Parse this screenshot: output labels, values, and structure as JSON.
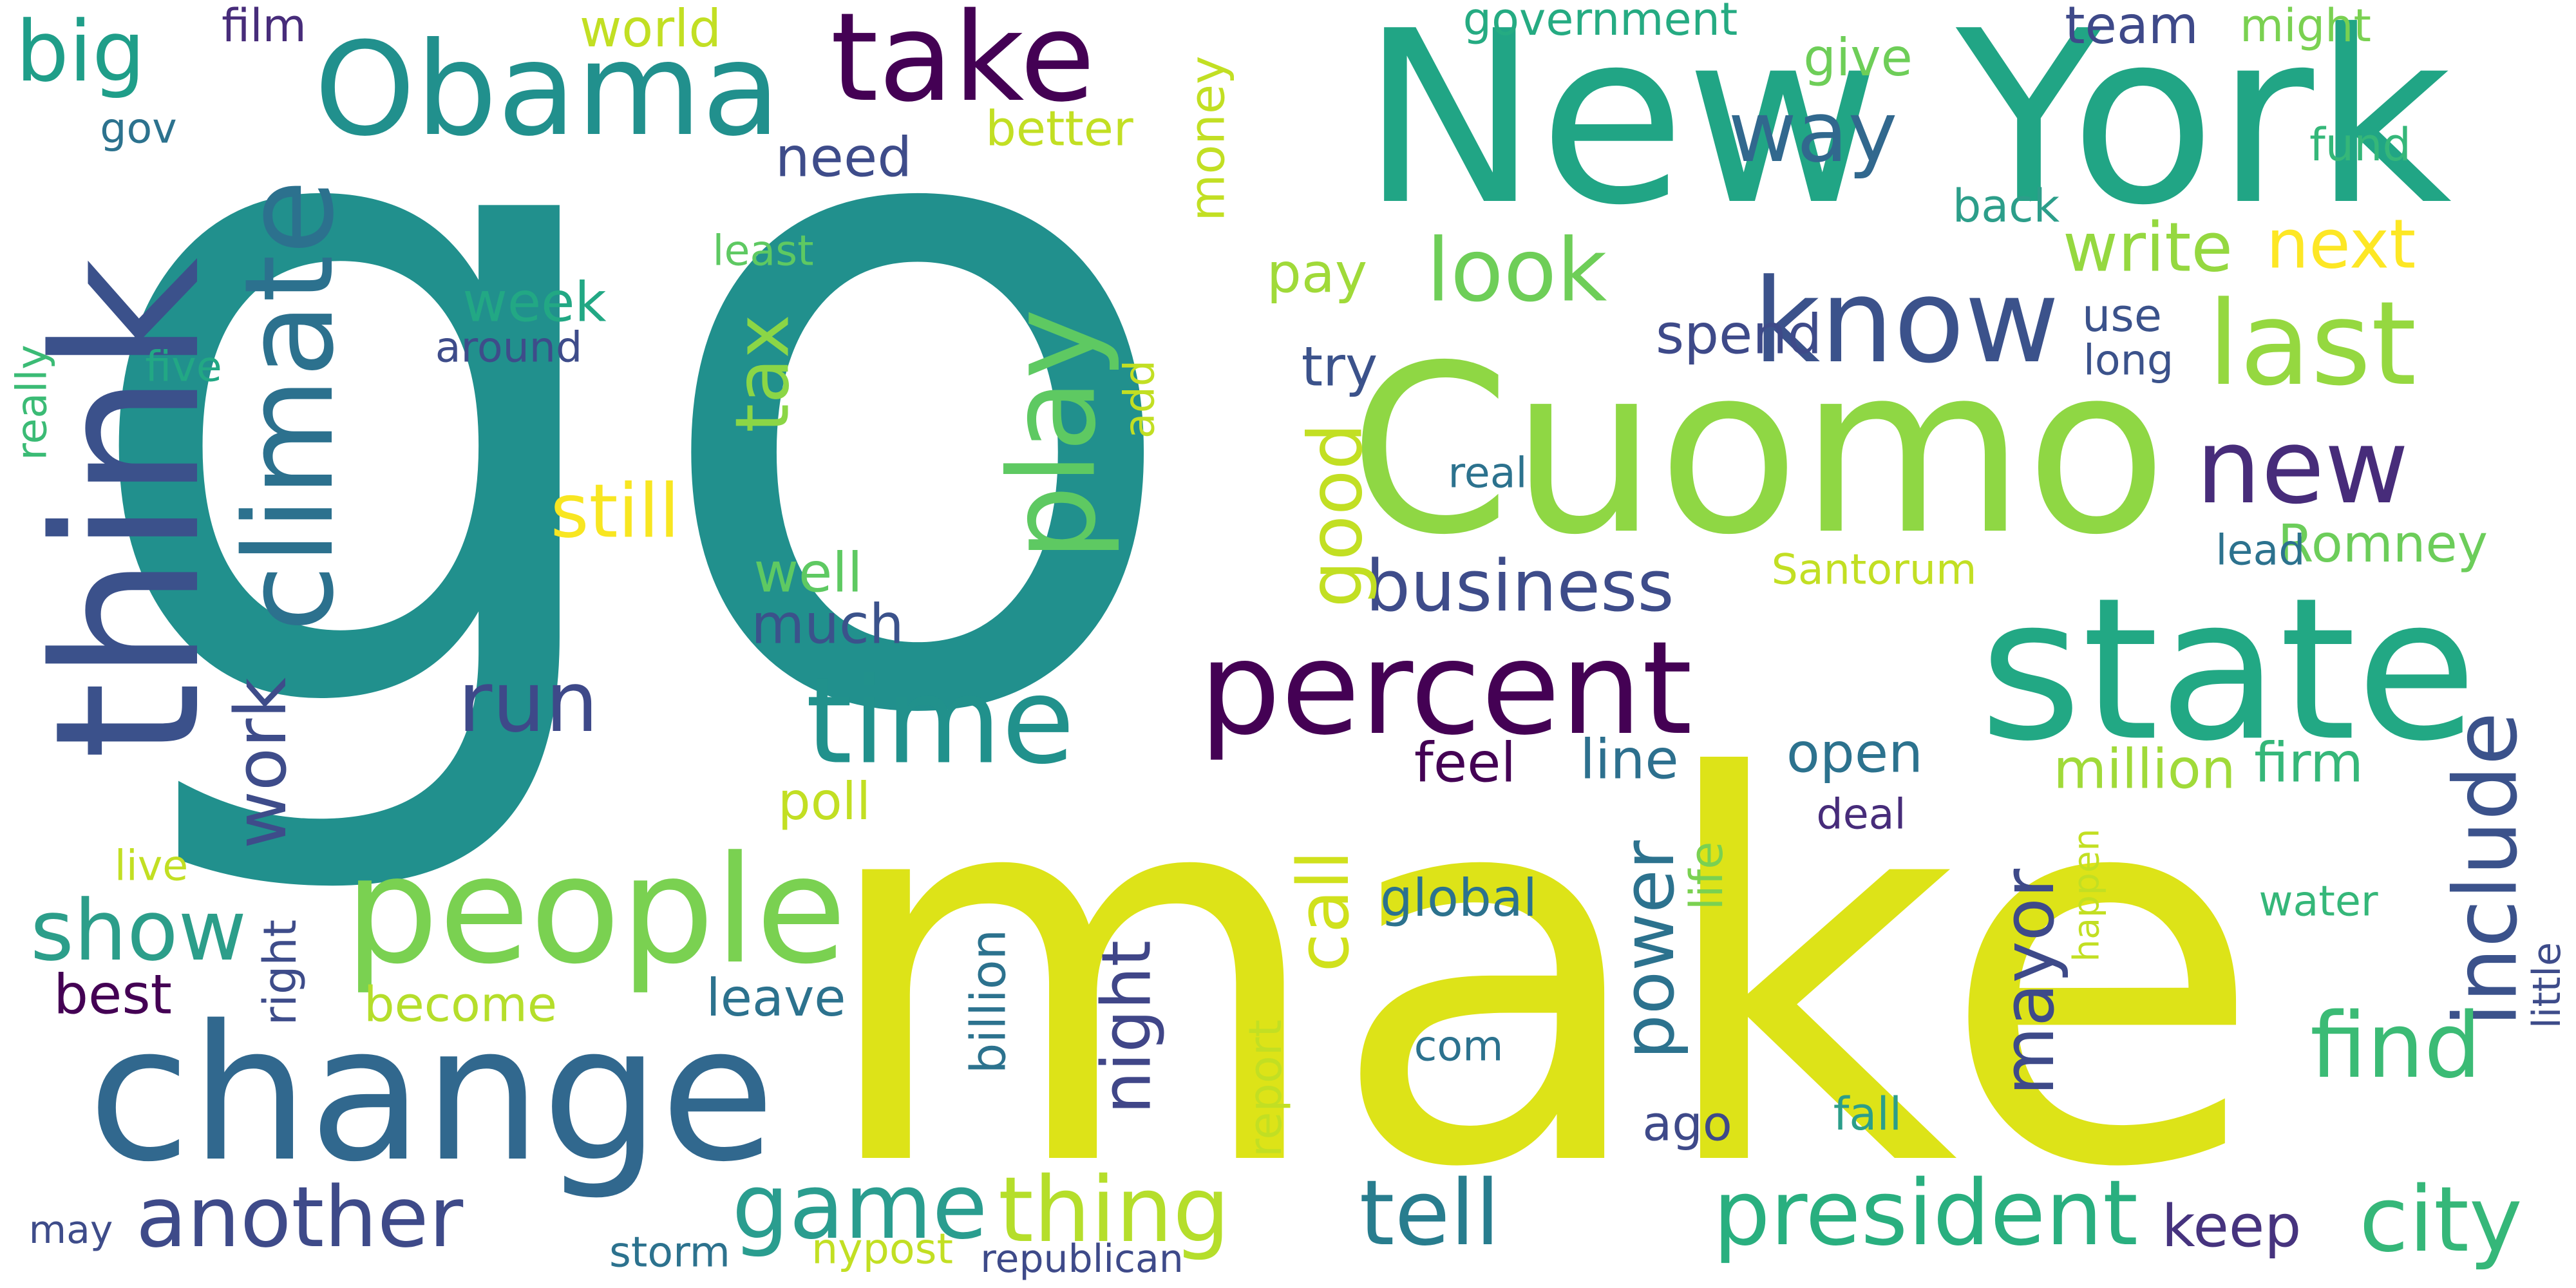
{
  "palette": {
    "dark_purple": "#440154",
    "purple": "#472c7a",
    "indigo": "#3b518b",
    "blue": "#2c718e",
    "teal": "#21908d",
    "green": "#27ad81",
    "light_green": "#5cc863",
    "lime": "#aadc32",
    "yellow": "#dde318",
    "bright_yellow": "#fde725"
  },
  "words": [
    {
      "text": "go",
      "color": "#21908d"
    },
    {
      "text": "make",
      "color": "#dde318"
    },
    {
      "text": "New York",
      "color": "#21a585"
    },
    {
      "text": "Cuomo",
      "color": "#8fd744"
    },
    {
      "text": "state",
      "color": "#22a884"
    },
    {
      "text": "think",
      "color": "#3b518b"
    },
    {
      "text": "change",
      "color": "#31688e"
    },
    {
      "text": "people",
      "color": "#7ad151"
    },
    {
      "text": "percent",
      "color": "#440154"
    },
    {
      "text": "Obama",
      "color": "#21908d"
    },
    {
      "text": "climate",
      "color": "#2c718e"
    },
    {
      "text": "take",
      "color": "#440154"
    },
    {
      "text": "know",
      "color": "#3b528b"
    },
    {
      "text": "last",
      "color": "#95d840"
    },
    {
      "text": "time",
      "color": "#21918c"
    },
    {
      "text": "play",
      "color": "#5ec962"
    },
    {
      "text": "president",
      "color": "#29af7f"
    },
    {
      "text": "new",
      "color": "#472c7a"
    },
    {
      "text": "city",
      "color": "#35b779"
    },
    {
      "text": "tell",
      "color": "#287d8e"
    },
    {
      "text": "thing",
      "color": "#b5de2b"
    },
    {
      "text": "game",
      "color": "#2a9d8f"
    },
    {
      "text": "another",
      "color": "#3e4a89"
    },
    {
      "text": "include",
      "color": "#3b528b"
    },
    {
      "text": "find",
      "color": "#3bbb75"
    },
    {
      "text": "run",
      "color": "#3e4989"
    },
    {
      "text": "show",
      "color": "#2c9e8a"
    },
    {
      "text": "business",
      "color": "#3e4c8a"
    },
    {
      "text": "look",
      "color": "#6ece58"
    },
    {
      "text": "way",
      "color": "#31688e"
    },
    {
      "text": "still",
      "color": "#f8e621"
    },
    {
      "text": "tax",
      "color": "#8bd646"
    },
    {
      "text": "good",
      "color": "#c2df23"
    },
    {
      "text": "write",
      "color": "#95d840"
    },
    {
      "text": "next",
      "color": "#fde725"
    },
    {
      "text": "big",
      "color": "#1f9e89"
    },
    {
      "text": "work",
      "color": "#3e4c8a"
    },
    {
      "text": "power",
      "color": "#2c728e"
    },
    {
      "text": "mayor",
      "color": "#3e4a89"
    },
    {
      "text": "call",
      "color": "#d0e11c"
    },
    {
      "text": "night",
      "color": "#404688"
    },
    {
      "text": "Romney",
      "color": "#6ccd5a"
    },
    {
      "text": "keep",
      "color": "#46337e"
    },
    {
      "text": "million",
      "color": "#a0da39"
    },
    {
      "text": "spend",
      "color": "#3e4a89"
    },
    {
      "text": "week",
      "color": "#22a884"
    },
    {
      "text": "much",
      "color": "#3b528b"
    },
    {
      "text": "well",
      "color": "#5ec962"
    },
    {
      "text": "feel",
      "color": "#440154"
    },
    {
      "text": "line",
      "color": "#2d708e"
    },
    {
      "text": "open",
      "color": "#2c728e"
    },
    {
      "text": "firm",
      "color": "#35b779"
    },
    {
      "text": "world",
      "color": "#c2df23"
    },
    {
      "text": "government",
      "color": "#25ab82"
    },
    {
      "text": "need",
      "color": "#3e4c8a"
    },
    {
      "text": "better",
      "color": "#c2df23"
    },
    {
      "text": "money",
      "color": "#c2df23"
    },
    {
      "text": "give",
      "color": "#6ece58"
    },
    {
      "text": "team",
      "color": "#3e4989"
    },
    {
      "text": "might",
      "color": "#7ad151"
    },
    {
      "text": "fund",
      "color": "#35b779"
    },
    {
      "text": "back",
      "color": "#2c9e8a"
    },
    {
      "text": "pay",
      "color": "#a0da39"
    },
    {
      "text": "try",
      "color": "#3b528b"
    },
    {
      "text": "use",
      "color": "#3b528b"
    },
    {
      "text": "long",
      "color": "#3b528b"
    },
    {
      "text": "least",
      "color": "#5ec962"
    },
    {
      "text": "film",
      "color": "#472c7a"
    },
    {
      "text": "gov",
      "color": "#2c728e"
    },
    {
      "text": "around",
      "color": "#3e4c8a"
    },
    {
      "text": "five",
      "color": "#22a884"
    },
    {
      "text": "really",
      "color": "#3bbb75"
    },
    {
      "text": "add",
      "color": "#c2df23"
    },
    {
      "text": "real",
      "color": "#2c728e"
    },
    {
      "text": "lead",
      "color": "#2c728e"
    },
    {
      "text": "Santorum",
      "color": "#c2df23"
    },
    {
      "text": "poll",
      "color": "#c2df23"
    },
    {
      "text": "live",
      "color": "#c2df23"
    },
    {
      "text": "best",
      "color": "#440154"
    },
    {
      "text": "right",
      "color": "#3e4c8a"
    },
    {
      "text": "become",
      "color": "#b5de2b"
    },
    {
      "text": "leave",
      "color": "#2c728e"
    },
    {
      "text": "global",
      "color": "#2c728e"
    },
    {
      "text": "billion",
      "color": "#2c728e"
    },
    {
      "text": "report",
      "color": "#c2df23"
    },
    {
      "text": "life",
      "color": "#7ad151"
    },
    {
      "text": "com",
      "color": "#2c728e"
    },
    {
      "text": "ago",
      "color": "#3e4989"
    },
    {
      "text": "fall",
      "color": "#2c9e8a"
    },
    {
      "text": "deal",
      "color": "#472c7a"
    },
    {
      "text": "happen",
      "color": "#c2df23"
    },
    {
      "text": "water",
      "color": "#35b779"
    },
    {
      "text": "little",
      "color": "#3e4c8a"
    },
    {
      "text": "may",
      "color": "#3e4c8a"
    },
    {
      "text": "storm",
      "color": "#2c728e"
    },
    {
      "text": "nypost",
      "color": "#c2df23"
    },
    {
      "text": "republican",
      "color": "#3e4a89"
    }
  ]
}
